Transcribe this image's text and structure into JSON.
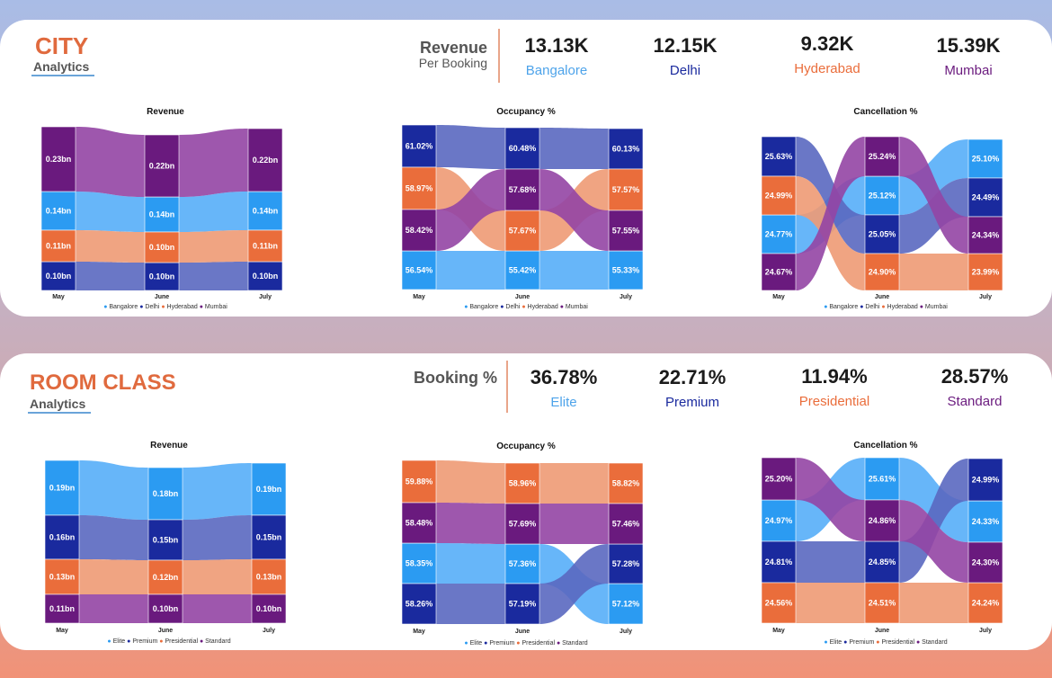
{
  "colors": {
    "bangalore": "#2b9bf2",
    "delhi": "#1a2a9e",
    "hyderabad": "#ea6d3b",
    "mumbai": "#6a1a7e",
    "elite": "#2b9bf2",
    "premium": "#1a2a9e",
    "presidential": "#ea6d3b",
    "standard": "#6a1a7e",
    "title": "#e06a3e"
  },
  "city": {
    "title": "CITY",
    "subtitle": "Analytics",
    "kpi_label_line1": "Revenue",
    "kpi_label_line2": "Per Booking",
    "kpis": [
      {
        "value": "13.13K",
        "name": "Bangalore",
        "color": "#4da3ea"
      },
      {
        "value": "12.15K",
        "name": "Delhi",
        "color": "#1a2a9e"
      },
      {
        "value": "9.32K",
        "name": "Hyderabad",
        "color": "#ea6d3b"
      },
      {
        "value": "15.39K",
        "name": "Mumbai",
        "color": "#6a1a7e"
      }
    ]
  },
  "room": {
    "title": "ROOM CLASS",
    "subtitle": "Analytics",
    "kpi_label_line1": "Booking %",
    "kpi_label_line2": "",
    "kpis": [
      {
        "value": "36.78%",
        "name": "Elite",
        "color": "#4da3ea"
      },
      {
        "value": "22.71%",
        "name": "Premium",
        "color": "#1a2a9e"
      },
      {
        "value": "11.94%",
        "name": "Presidential",
        "color": "#ea6d3b"
      },
      {
        "value": "28.57%",
        "name": "Standard",
        "color": "#6a1a7e"
      }
    ]
  },
  "chart_data": [
    {
      "id": "city-revenue",
      "type": "ribbon",
      "title": "Revenue",
      "categories": [
        "May",
        "June",
        "July"
      ],
      "series": [
        {
          "name": "Bangalore",
          "labels": [
            "0.14bn",
            "0.14bn",
            "0.14bn"
          ]
        },
        {
          "name": "Delhi",
          "labels": [
            "0.10bn",
            "0.10bn",
            "0.10bn"
          ]
        },
        {
          "name": "Hyderabad",
          "labels": [
            "0.11bn",
            "0.10bn",
            "0.11bn"
          ]
        },
        {
          "name": "Mumbai",
          "labels": [
            "0.23bn",
            "0.22bn",
            "0.22bn"
          ]
        }
      ],
      "legend": [
        "Bangalore",
        "Delhi",
        "Hyderabad",
        "Mumbai"
      ]
    },
    {
      "id": "city-occupancy",
      "type": "ribbon",
      "title": "Occupancy %",
      "categories": [
        "May",
        "June",
        "July"
      ],
      "series": [
        {
          "name": "Bangalore",
          "labels": [
            "56.54%",
            "55.42%",
            "55.33%"
          ]
        },
        {
          "name": "Delhi",
          "labels": [
            "61.02%",
            "60.48%",
            "60.13%"
          ]
        },
        {
          "name": "Hyderabad",
          "labels": [
            "58.97%",
            "57.67%",
            "57.57%"
          ]
        },
        {
          "name": "Mumbai",
          "labels": [
            "58.42%",
            "57.68%",
            "57.55%"
          ]
        }
      ],
      "legend": [
        "Bangalore",
        "Delhi",
        "Hyderabad",
        "Mumbai"
      ]
    },
    {
      "id": "city-cancellation",
      "type": "ribbon",
      "title": "Cancellation %",
      "categories": [
        "May",
        "June",
        "July"
      ],
      "series": [
        {
          "name": "Bangalore",
          "labels": [
            "24.77%",
            "25.12%",
            "25.10%"
          ]
        },
        {
          "name": "Delhi",
          "labels": [
            "25.63%",
            "25.05%",
            "24.49%"
          ]
        },
        {
          "name": "Hyderabad",
          "labels": [
            "24.99%",
            "24.90%",
            "23.99%"
          ]
        },
        {
          "name": "Mumbai",
          "labels": [
            "24.67%",
            "25.24%",
            "24.34%"
          ]
        }
      ],
      "legend": [
        "Bangalore",
        "Delhi",
        "Hyderabad",
        "Mumbai"
      ]
    },
    {
      "id": "room-revenue",
      "type": "ribbon",
      "title": "Revenue",
      "categories": [
        "May",
        "June",
        "July"
      ],
      "series": [
        {
          "name": "Elite",
          "labels": [
            "0.19bn",
            "0.18bn",
            "0.19bn"
          ]
        },
        {
          "name": "Premium",
          "labels": [
            "0.16bn",
            "0.15bn",
            "0.15bn"
          ]
        },
        {
          "name": "Presidential",
          "labels": [
            "0.13bn",
            "0.12bn",
            "0.13bn"
          ]
        },
        {
          "name": "Standard",
          "labels": [
            "0.11bn",
            "0.10bn",
            "0.10bn"
          ]
        }
      ],
      "legend": [
        "Elite",
        "Premium",
        "Presidential",
        "Standard"
      ]
    },
    {
      "id": "room-occupancy",
      "type": "ribbon",
      "title": "Occupancy %",
      "categories": [
        "May",
        "June",
        "July"
      ],
      "series": [
        {
          "name": "Elite",
          "labels": [
            "58.35%",
            "57.36%",
            "57.12%"
          ]
        },
        {
          "name": "Premium",
          "labels": [
            "58.26%",
            "57.19%",
            "57.28%"
          ]
        },
        {
          "name": "Presidential",
          "labels": [
            "59.88%",
            "58.96%",
            "58.82%"
          ]
        },
        {
          "name": "Standard",
          "labels": [
            "58.48%",
            "57.69%",
            "57.46%"
          ]
        }
      ],
      "legend": [
        "Elite",
        "Premium",
        "Presidential",
        "Standard"
      ]
    },
    {
      "id": "room-cancellation",
      "type": "ribbon",
      "title": "Cancellation %",
      "categories": [
        "May",
        "June",
        "July"
      ],
      "series": [
        {
          "name": "Elite",
          "labels": [
            "24.97%",
            "25.61%",
            "24.33%"
          ]
        },
        {
          "name": "Premium",
          "labels": [
            "24.81%",
            "24.85%",
            "24.99%"
          ]
        },
        {
          "name": "Presidential",
          "labels": [
            "24.56%",
            "24.51%",
            "24.24%"
          ]
        },
        {
          "name": "Standard",
          "labels": [
            "25.20%",
            "24.86%",
            "24.30%"
          ]
        }
      ],
      "legend": [
        "Elite",
        "Premium",
        "Presidential",
        "Standard"
      ]
    }
  ]
}
